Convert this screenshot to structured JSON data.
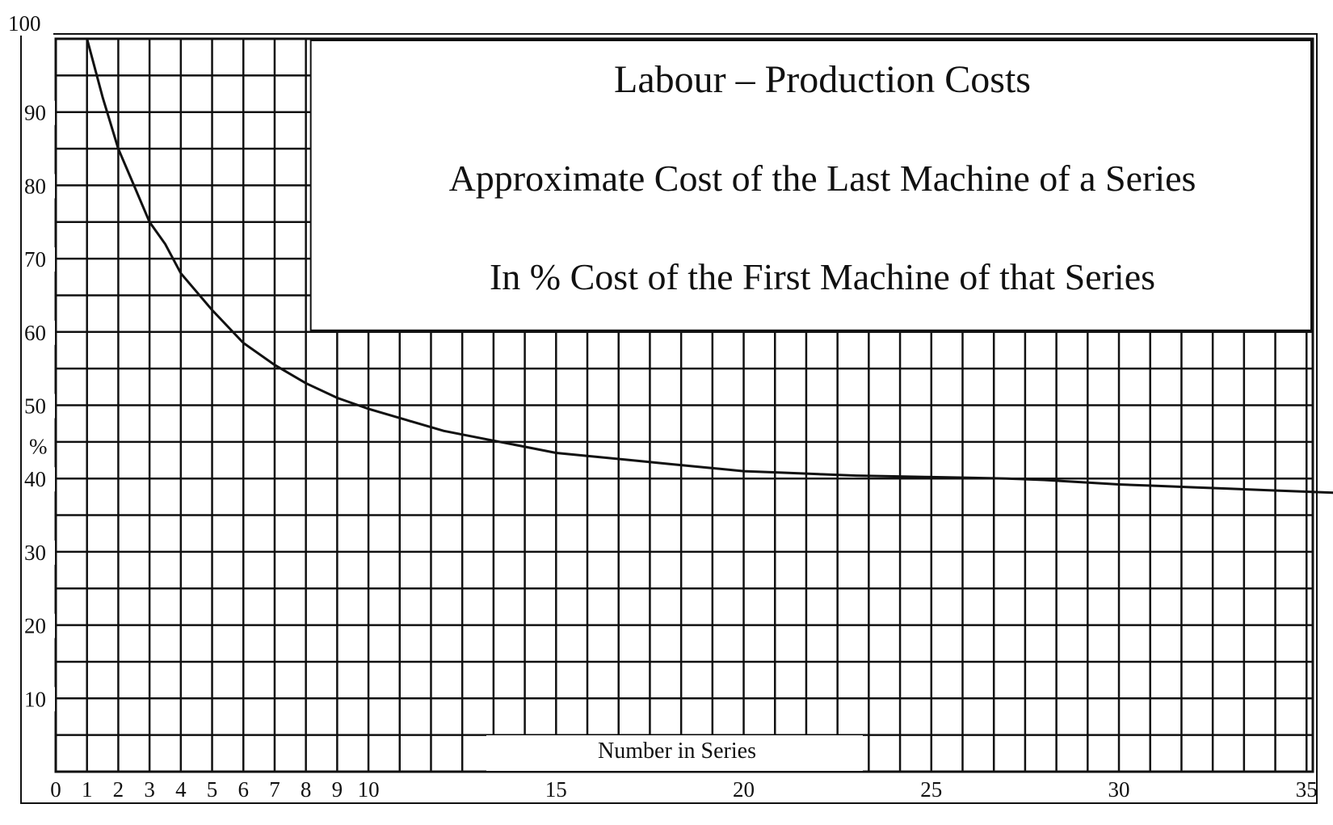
{
  "chart_data": {
    "type": "line",
    "title": "Labour – Production Costs",
    "subtitle": [
      "Approximate Cost of the Last Machine of a Series",
      "In % Cost of the First Machine of that Series"
    ],
    "xlabel": "Number in Series",
    "ylabel": "%",
    "xlim": [
      0,
      36
    ],
    "ylim": [
      0,
      100
    ],
    "x_ticks": [
      "0",
      "1",
      "2",
      "3",
      "4",
      "5",
      "6",
      "7",
      "8",
      "9",
      "10",
      "15",
      "20",
      "25",
      "30",
      "35"
    ],
    "y_ticks": [
      "10",
      "20",
      "30",
      "40",
      "50",
      "60",
      "70",
      "80",
      "90",
      "100"
    ],
    "grid": true,
    "series": [
      {
        "x": [
          1,
          1.5,
          2,
          2.5,
          3,
          3.5,
          4,
          5,
          6,
          7,
          8,
          9,
          10,
          11,
          12,
          13,
          14,
          15,
          16,
          17,
          18,
          19,
          20,
          21,
          22,
          23,
          24,
          25,
          26,
          27,
          28,
          29,
          30,
          31,
          32,
          33,
          34,
          35,
          36
        ],
        "y": [
          100,
          92,
          85,
          80,
          75,
          72,
          68,
          63,
          58.5,
          55.5,
          53,
          51,
          49.5,
          48,
          46.5,
          45.5,
          44.5,
          43.5,
          43,
          42.5,
          42,
          41.5,
          41,
          40.8,
          40.6,
          40.4,
          40.3,
          40.2,
          40.1,
          40,
          39.8,
          39.5,
          39.2,
          39,
          38.8,
          38.6,
          38.4,
          38.2,
          38
        ]
      }
    ]
  }
}
